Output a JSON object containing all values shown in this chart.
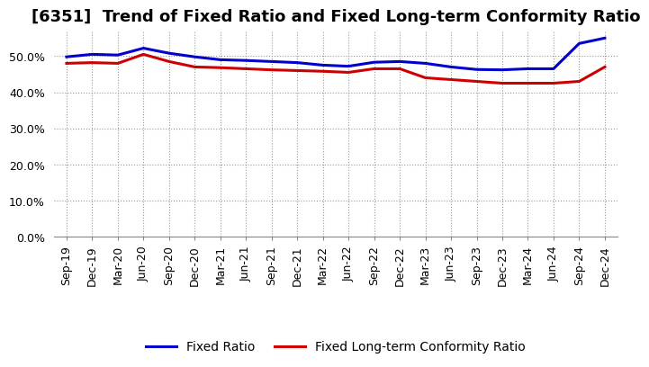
{
  "title": "[6351]  Trend of Fixed Ratio and Fixed Long-term Conformity Ratio",
  "x_labels": [
    "Sep-19",
    "Dec-19",
    "Mar-20",
    "Jun-20",
    "Sep-20",
    "Dec-20",
    "Mar-21",
    "Jun-21",
    "Sep-21",
    "Dec-21",
    "Mar-22",
    "Jun-22",
    "Sep-22",
    "Dec-22",
    "Mar-23",
    "Jun-23",
    "Sep-23",
    "Dec-23",
    "Mar-24",
    "Jun-24",
    "Sep-24",
    "Dec-24"
  ],
  "fixed_ratio": [
    49.8,
    50.5,
    50.3,
    52.2,
    50.8,
    49.8,
    49.0,
    48.8,
    48.5,
    48.2,
    47.5,
    47.2,
    48.3,
    48.5,
    48.0,
    47.0,
    46.3,
    46.2,
    46.5,
    46.5,
    53.5,
    55.0
  ],
  "fixed_lt_ratio": [
    48.0,
    48.2,
    48.0,
    50.5,
    48.5,
    47.0,
    46.8,
    46.5,
    46.2,
    46.0,
    45.8,
    45.5,
    46.5,
    46.5,
    44.0,
    43.5,
    43.0,
    42.5,
    42.5,
    42.5,
    43.0,
    47.0
  ],
  "fixed_ratio_color": "#0000cc",
  "fixed_lt_ratio_color": "#cc0000",
  "ylim": [
    0,
    57
  ],
  "yticks": [
    0,
    10,
    20,
    30,
    40,
    50
  ],
  "background_color": "#ffffff",
  "grid_color": "#999999",
  "legend_fixed_ratio": "Fixed Ratio",
  "legend_fixed_lt_ratio": "Fixed Long-term Conformity Ratio",
  "title_fontsize": 13,
  "tick_fontsize": 9,
  "legend_fontsize": 10
}
